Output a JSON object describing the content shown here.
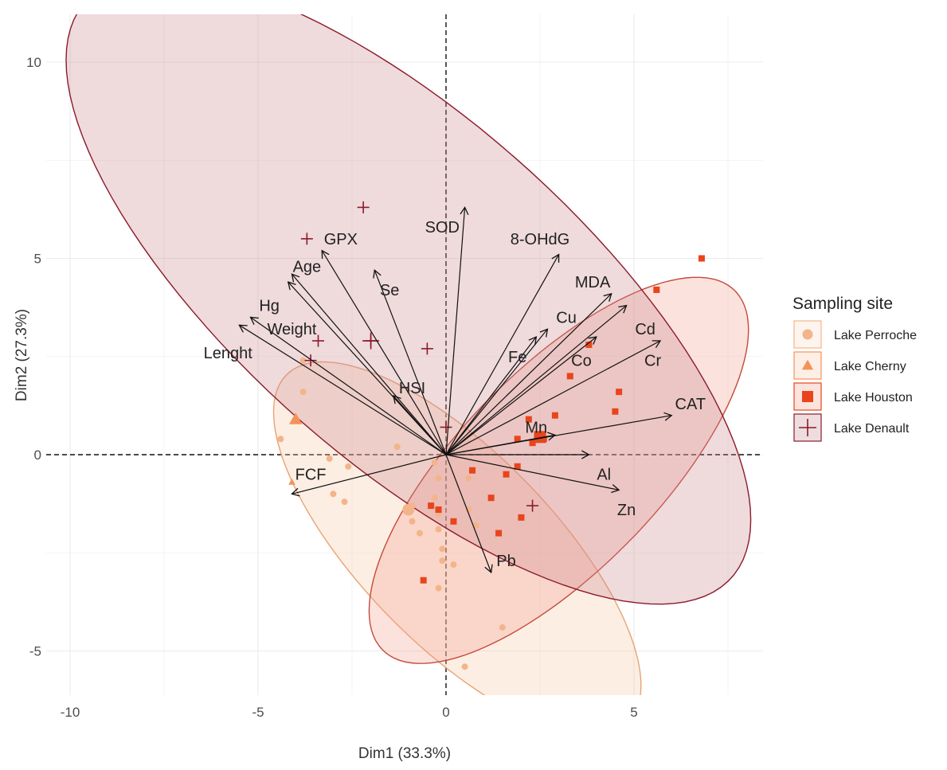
{
  "chart_data": {
    "type": "scatter",
    "subtype": "pca-biplot",
    "title": "",
    "xlabel": "Dim1 (33.3%)",
    "ylabel": "Dim2 (27.3%)",
    "xlim": [
      -10.2,
      8.3
    ],
    "ylim": [
      -6.35,
      11.1
    ],
    "x_ticks": [
      -10,
      -5,
      0,
      5
    ],
    "y_ticks": [
      -5,
      0,
      5,
      10
    ],
    "grid": true,
    "legend_position": "right",
    "legend_title": "Sampling site",
    "series": [
      {
        "name": "Lake Perroche",
        "marker": "circle",
        "color": "#f3b48a",
        "points": [
          [
            -3.8,
            2.4
          ],
          [
            -3.8,
            1.6
          ],
          [
            -4.4,
            0.4
          ],
          [
            -3.1,
            -0.1
          ],
          [
            -2.6,
            -0.3
          ],
          [
            -3.0,
            -1.0
          ],
          [
            -2.7,
            -1.2
          ],
          [
            -1.3,
            0.2
          ],
          [
            -0.9,
            -1.3
          ],
          [
            -0.9,
            -1.7
          ],
          [
            -0.7,
            -2.0
          ],
          [
            -0.3,
            -0.2
          ],
          [
            -0.2,
            -0.6
          ],
          [
            -0.3,
            -1.1
          ],
          [
            -0.2,
            -1.5
          ],
          [
            -0.2,
            -1.9
          ],
          [
            -0.1,
            -2.4
          ],
          [
            -0.1,
            -2.7
          ],
          [
            -0.2,
            -3.4
          ],
          [
            0.2,
            -2.8
          ],
          [
            0.6,
            -0.6
          ],
          [
            0.6,
            -1.4
          ],
          [
            0.8,
            -1.8
          ],
          [
            0.5,
            -5.4
          ],
          [
            1.5,
            -4.4
          ]
        ],
        "centroid": [
          -1.0,
          -1.4
        ]
      },
      {
        "name": "Lake Cherny",
        "marker": "triangle",
        "color": "#f4925a",
        "points": [
          [
            -4.1,
            -0.7
          ]
        ],
        "centroid": [
          -4.0,
          0.9
        ]
      },
      {
        "name": "Lake Houston",
        "marker": "square",
        "color": "#e8451c",
        "points": [
          [
            6.8,
            5.0
          ],
          [
            5.6,
            4.2
          ],
          [
            3.8,
            2.8
          ],
          [
            3.3,
            2.0
          ],
          [
            4.6,
            1.6
          ],
          [
            4.5,
            1.1
          ],
          [
            2.9,
            1.0
          ],
          [
            2.2,
            0.9
          ],
          [
            1.9,
            0.4
          ],
          [
            2.6,
            0.4
          ],
          [
            2.3,
            0.3
          ],
          [
            1.9,
            -0.3
          ],
          [
            0.7,
            -0.4
          ],
          [
            1.6,
            -0.5
          ],
          [
            1.2,
            -1.1
          ],
          [
            2.0,
            -1.6
          ],
          [
            1.4,
            -2.0
          ],
          [
            -0.4,
            -1.3
          ],
          [
            -0.2,
            -1.4
          ],
          [
            0.2,
            -1.7
          ],
          [
            -0.6,
            -3.2
          ]
        ],
        "centroid": [
          2.5,
          0.45
        ]
      },
      {
        "name": "Lake Denault",
        "marker": "cross",
        "color": "#8b1a2a",
        "points": [
          [
            -2.2,
            6.3
          ],
          [
            -3.7,
            5.5
          ],
          [
            -3.4,
            2.9
          ],
          [
            -2.0,
            2.9
          ],
          [
            -3.6,
            2.4
          ],
          [
            -0.5,
            2.7
          ],
          [
            0.0,
            0.7
          ],
          [
            2.3,
            -1.3
          ]
        ],
        "centroid": [
          -2.0,
          2.9
        ]
      }
    ],
    "ellipses": [
      {
        "series": "Lake Perroche",
        "center": [
          0.3,
          -2.4
        ],
        "semi_major": 6.35,
        "semi_minor": 2.5,
        "angle_deg": -44,
        "fill": "#f6c7a3",
        "stroke": "#e8a375"
      },
      {
        "series": "Lake Houston",
        "center": [
          3.0,
          -0.4
        ],
        "semi_major": 6.55,
        "semi_minor": 2.6,
        "angle_deg": 44,
        "fill": "#f1a08d",
        "stroke": "#c54a3a"
      },
      {
        "series": "Lake Denault",
        "center": [
          -1.0,
          4.2
        ],
        "semi_major": 11.3,
        "semi_minor": 4.4,
        "angle_deg": -40,
        "fill": "#c9868c",
        "stroke": "#8b1a2a"
      }
    ],
    "variables": [
      {
        "name": "SOD",
        "x": 0.5,
        "y": 6.3,
        "label_pos": [
          -0.1,
          5.8
        ]
      },
      {
        "name": "8-OHdG",
        "x": 3.0,
        "y": 5.1,
        "label_pos": [
          2.5,
          5.5
        ]
      },
      {
        "name": "GPX",
        "x": -3.3,
        "y": 5.2,
        "label_pos": [
          -2.8,
          5.5
        ]
      },
      {
        "name": "Age",
        "x": -4.1,
        "y": 4.6,
        "label_pos": [
          -3.7,
          4.8
        ]
      },
      {
        "name": "Se",
        "x": -1.9,
        "y": 4.7,
        "label_pos": [
          -1.5,
          4.2
        ]
      },
      {
        "name": "MDA",
        "x": 4.4,
        "y": 4.1,
        "label_pos": [
          3.9,
          4.4
        ]
      },
      {
        "name": "Hg",
        "x": -4.2,
        "y": 4.4,
        "label_pos": [
          -4.7,
          3.8
        ]
      },
      {
        "name": "Cu",
        "x": 2.7,
        "y": 3.2,
        "label_pos": [
          3.2,
          3.5
        ]
      },
      {
        "name": "Cd",
        "x": 4.8,
        "y": 3.8,
        "label_pos": [
          5.3,
          3.2
        ]
      },
      {
        "name": "Weight",
        "x": -5.2,
        "y": 3.5,
        "label_pos": [
          -4.1,
          3.2
        ]
      },
      {
        "name": "Fe",
        "x": 2.4,
        "y": 3.0,
        "label_pos": [
          1.9,
          2.5
        ]
      },
      {
        "name": "Co",
        "x": 4.0,
        "y": 3.0,
        "label_pos": [
          3.6,
          2.4
        ]
      },
      {
        "name": "Lenght",
        "x": -5.5,
        "y": 3.3,
        "label_pos": [
          -5.8,
          2.6
        ]
      },
      {
        "name": "Cr",
        "x": 5.7,
        "y": 2.9,
        "label_pos": [
          5.5,
          2.4
        ]
      },
      {
        "name": "HSI",
        "x": -1.4,
        "y": 1.5,
        "label_pos": [
          -0.9,
          1.7
        ]
      },
      {
        "name": "CAT",
        "x": 6.0,
        "y": 1.0,
        "label_pos": [
          6.5,
          1.3
        ]
      },
      {
        "name": "Mn",
        "x": 2.9,
        "y": 0.5,
        "label_pos": [
          2.4,
          0.7
        ]
      },
      {
        "name": "FCF",
        "x": -4.1,
        "y": -1.0,
        "label_pos": [
          -3.6,
          -0.5
        ]
      },
      {
        "name": "Al",
        "x": 3.8,
        "y": 0.0,
        "label_pos": [
          4.2,
          -0.5
        ]
      },
      {
        "name": "Zn",
        "x": 4.6,
        "y": -0.9,
        "label_pos": [
          4.8,
          -1.4
        ]
      },
      {
        "name": "Pb",
        "x": 1.2,
        "y": -3.0,
        "label_pos": [
          1.6,
          -2.7
        ]
      }
    ]
  }
}
